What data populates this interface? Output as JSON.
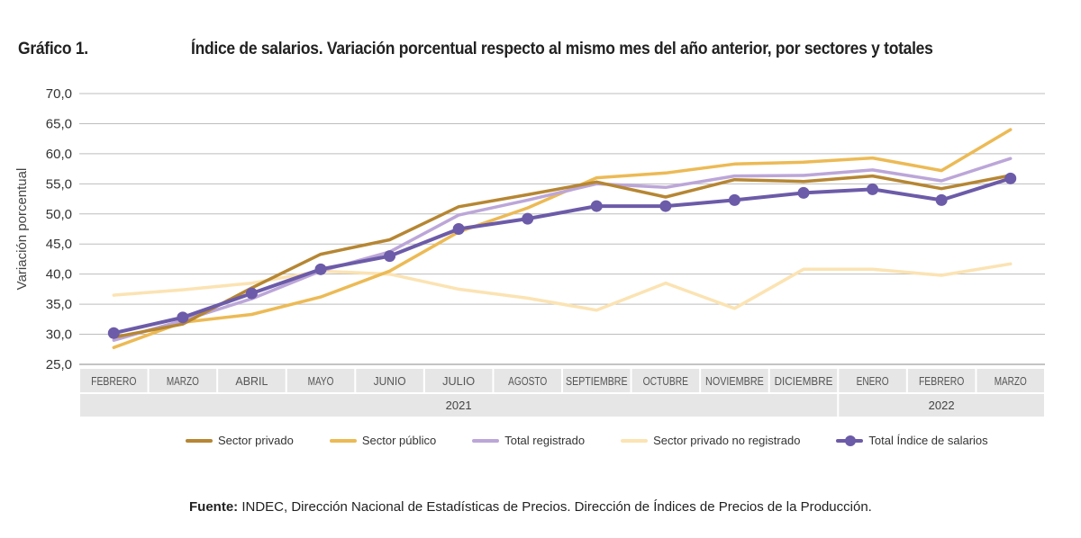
{
  "figure_label": "Gráfico 1.",
  "title": "Índice de salarios. Variación porcentual respecto al mismo mes del año anterior, por sectores y totales",
  "source_label": "Fuente:",
  "source_text": "INDEC, Dirección Nacional de Estadísticas de Precios. Dirección de Índices de Precios de la Producción.",
  "chart_data": {
    "type": "line",
    "ylabel": "Variación porcentual",
    "xlabel": "",
    "ylim": [
      25,
      70
    ],
    "yticks": [
      "25,0",
      "30,0",
      "35,0",
      "40,0",
      "45,0",
      "50,0",
      "55,0",
      "60,0",
      "65,0",
      "70,0"
    ],
    "grid": true,
    "legend_position": "bottom",
    "categories": [
      "FEBRERO",
      "MARZO",
      "ABRIL",
      "MAYO",
      "JUNIO",
      "JULIO",
      "AGOSTO",
      "SEPTIEMBRE",
      "OCTUBRE",
      "NOVIEMBRE",
      "DICIEMBRE",
      "ENERO",
      "FEBRERO",
      "MARZO"
    ],
    "year_groups": [
      {
        "label": "2021",
        "count": 11
      },
      {
        "label": "2022",
        "count": 3
      }
    ],
    "series": [
      {
        "name": "Sector privado no registrado",
        "color": "#fbe3b3",
        "width": 3.5,
        "markers": false,
        "values": [
          36.5,
          37.4,
          38.5,
          40.5,
          40.0,
          37.5,
          36.0,
          34.0,
          38.5,
          34.3,
          40.8,
          40.8,
          39.8,
          41.7
        ]
      },
      {
        "name": "Sector público",
        "color": "#ecba55",
        "width": 3.5,
        "markers": false,
        "values": [
          27.8,
          32.0,
          33.3,
          36.2,
          40.5,
          47.0,
          51.0,
          56.0,
          56.8,
          58.3,
          58.6,
          59.3,
          57.2,
          64.0
        ]
      },
      {
        "name": "Total registrado",
        "color": "#bca6d8",
        "width": 3.5,
        "markers": false,
        "values": [
          29.0,
          32.3,
          35.9,
          40.5,
          43.7,
          49.8,
          52.3,
          55.0,
          54.4,
          56.3,
          56.4,
          57.3,
          55.5,
          59.2
        ]
      },
      {
        "name": "Sector privado",
        "color": "#b68633",
        "width": 3.5,
        "markers": false,
        "values": [
          29.5,
          31.7,
          37.7,
          43.3,
          45.7,
          51.2,
          53.2,
          55.3,
          52.8,
          55.7,
          55.4,
          56.3,
          54.2,
          56.4
        ]
      },
      {
        "name": "Total Índice de salarios",
        "color": "#6c5ba8",
        "width": 4,
        "markers": true,
        "values": [
          30.2,
          32.8,
          36.8,
          40.8,
          43.0,
          47.5,
          49.2,
          51.3,
          51.3,
          52.3,
          53.5,
          54.1,
          52.3,
          55.9
        ]
      }
    ],
    "legend_order": [
      "Sector privado",
      "Sector público",
      "Total registrado",
      "Sector privado no registrado",
      "Total Índice de salarios"
    ]
  }
}
